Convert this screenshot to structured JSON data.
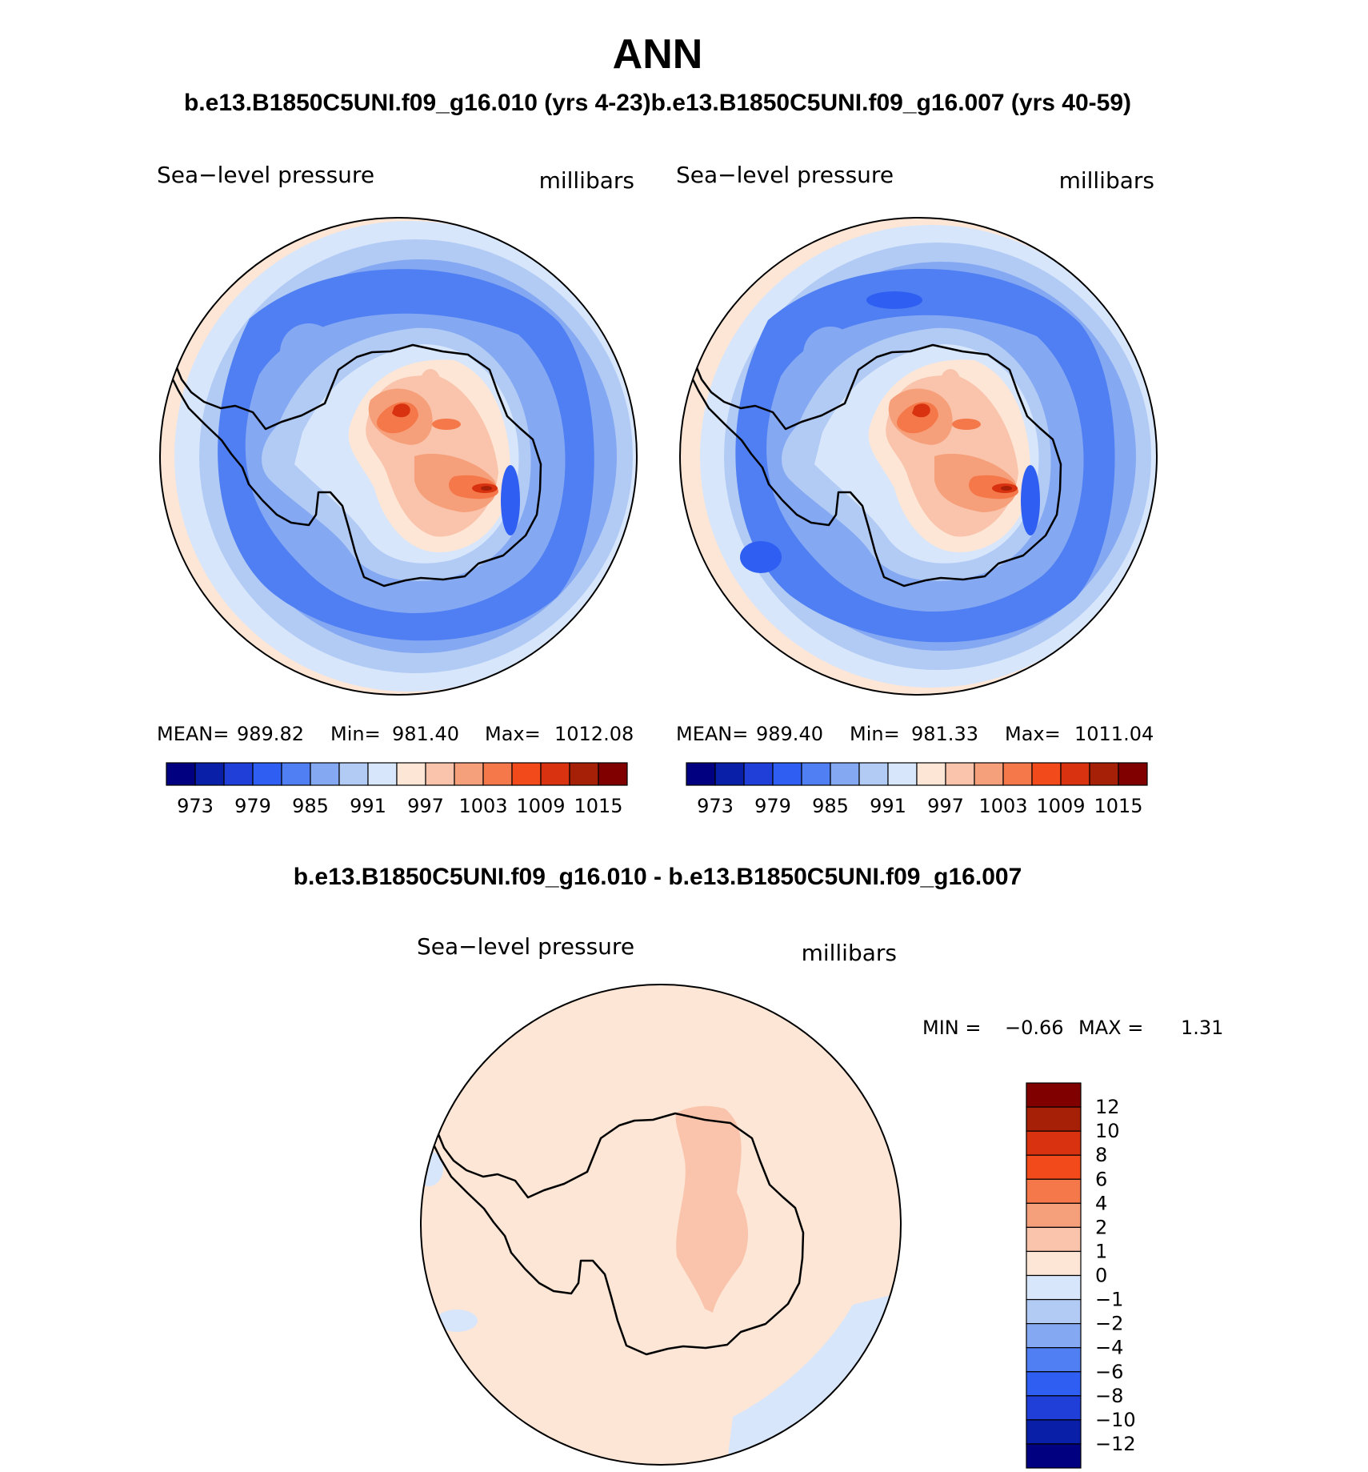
{
  "page": {
    "title": "ANN",
    "subtitle_top": "b.e13.B1850C5UNI.f09_g16.010 (yrs 4-23)b.e13.B1850C5UNI.f09_g16.007 (yrs 40-59)",
    "subtitle_diff": "b.e13.B1850C5UNI.f09_g16.010 - b.e13.B1850C5UNI.f09_g16.007"
  },
  "panels": [
    {
      "variable": "Sea−level pressure",
      "units": "millibars",
      "stats": {
        "mean_label": "MEAN=",
        "mean": "989.82",
        "min_label": "Min=",
        "min": "981.40",
        "max_label": "Max=",
        "max": "1012.08"
      }
    },
    {
      "variable": "Sea−level pressure",
      "units": "millibars",
      "stats": {
        "mean_label": "MEAN=",
        "mean": "989.40",
        "min_label": "Min=",
        "min": "981.33",
        "max_label": "Max=",
        "max": "1011.04"
      }
    }
  ],
  "colorbar_main": {
    "colors": [
      "#000080",
      "#0a1fa8",
      "#1f3fd8",
      "#2f5ef2",
      "#4f7ff2",
      "#85a8f2",
      "#b2cbf5",
      "#d7e6fb",
      "#fde6d6",
      "#f9c4ab",
      "#f6a07b",
      "#f4784a",
      "#f24a1a",
      "#d83210",
      "#a52006",
      "#800000"
    ],
    "labels": [
      "973",
      "979",
      "985",
      "991",
      "997",
      "1003",
      "1009",
      "1015"
    ]
  },
  "diff_panel": {
    "variable": "Sea−level pressure",
    "units": "millibars",
    "min_label": "MIN =",
    "min": "−0.66",
    "max_label": "MAX =",
    "max": "1.31"
  },
  "colorbar_diff": {
    "colors": [
      "#800000",
      "#a52006",
      "#d83210",
      "#f24a1a",
      "#f4784a",
      "#f6a07b",
      "#f9c4ab",
      "#fde6d6",
      "#d7e6fb",
      "#b2cbf5",
      "#85a8f2",
      "#4f7ff2",
      "#2f5ef2",
      "#1f3fd8",
      "#0a1fa8",
      "#000080"
    ],
    "labels": [
      "12",
      "10",
      "8",
      "6",
      "4",
      "2",
      "1",
      "0",
      "−1",
      "−2",
      "−4",
      "−6",
      "−8",
      "−10",
      "−12"
    ]
  }
}
